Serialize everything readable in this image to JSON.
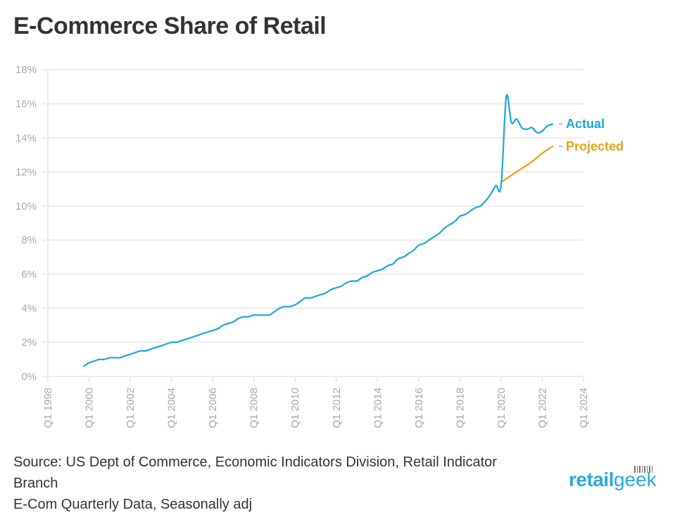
{
  "chart_data": {
    "type": "line",
    "title": "E-Commerce Share of Retail",
    "xlabel": "",
    "ylabel": "",
    "ylim": [
      0,
      18
    ],
    "xlim": [
      1998,
      2024
    ],
    "y_ticks": [
      "0%",
      "2%",
      "4%",
      "6%",
      "8%",
      "10%",
      "12%",
      "14%",
      "16%",
      "18%"
    ],
    "y_tick_values": [
      0,
      2,
      4,
      6,
      8,
      10,
      12,
      14,
      16,
      18
    ],
    "x_ticks": [
      "Q1 1998",
      "Q1 2000",
      "Q1 2002",
      "Q1 2004",
      "Q1 2006",
      "Q1 2008",
      "Q1 2010",
      "Q1 2012",
      "Q1 2014",
      "Q1 2016",
      "Q1 2018",
      "Q1 2020",
      "Q1 2022",
      "Q1 2024"
    ],
    "x_tick_values": [
      1998,
      2000,
      2002,
      2004,
      2006,
      2008,
      2010,
      2012,
      2014,
      2016,
      2018,
      2020,
      2022,
      2024
    ],
    "grid": true,
    "legend": "right (inline labels at line ends)",
    "series": [
      {
        "name": "Actual",
        "color": "#1aa7dc",
        "x": [
          1999.75,
          2000.0,
          2000.25,
          2000.5,
          2000.75,
          2001.0,
          2001.25,
          2001.5,
          2001.75,
          2002.0,
          2002.25,
          2002.5,
          2002.75,
          2003.0,
          2003.25,
          2003.5,
          2003.75,
          2004.0,
          2004.25,
          2004.5,
          2004.75,
          2005.0,
          2005.25,
          2005.5,
          2005.75,
          2006.0,
          2006.25,
          2006.5,
          2006.75,
          2007.0,
          2007.25,
          2007.5,
          2007.75,
          2008.0,
          2008.25,
          2008.5,
          2008.75,
          2009.0,
          2009.25,
          2009.5,
          2009.75,
          2010.0,
          2010.25,
          2010.5,
          2010.75,
          2011.0,
          2011.25,
          2011.5,
          2011.75,
          2012.0,
          2012.25,
          2012.5,
          2012.75,
          2013.0,
          2013.25,
          2013.5,
          2013.75,
          2014.0,
          2014.25,
          2014.5,
          2014.75,
          2015.0,
          2015.25,
          2015.5,
          2015.75,
          2016.0,
          2016.25,
          2016.5,
          2016.75,
          2017.0,
          2017.25,
          2017.5,
          2017.75,
          2018.0,
          2018.25,
          2018.5,
          2018.75,
          2019.0,
          2019.25,
          2019.5,
          2019.75,
          2020.0,
          2020.25,
          2020.5,
          2020.75,
          2021.0,
          2021.25,
          2021.5,
          2021.75,
          2022.0,
          2022.25,
          2022.5
        ],
        "values": [
          0.6,
          0.8,
          0.9,
          1.0,
          1.0,
          1.1,
          1.1,
          1.1,
          1.2,
          1.3,
          1.4,
          1.5,
          1.5,
          1.6,
          1.7,
          1.8,
          1.9,
          2.0,
          2.0,
          2.1,
          2.2,
          2.3,
          2.4,
          2.5,
          2.6,
          2.7,
          2.8,
          3.0,
          3.1,
          3.2,
          3.4,
          3.5,
          3.5,
          3.6,
          3.6,
          3.6,
          3.6,
          3.8,
          4.0,
          4.1,
          4.1,
          4.2,
          4.4,
          4.6,
          4.6,
          4.7,
          4.8,
          4.9,
          5.1,
          5.2,
          5.3,
          5.5,
          5.6,
          5.6,
          5.8,
          5.9,
          6.1,
          6.2,
          6.3,
          6.5,
          6.6,
          6.9,
          7.0,
          7.2,
          7.4,
          7.7,
          7.8,
          8.0,
          8.2,
          8.4,
          8.7,
          8.9,
          9.1,
          9.4,
          9.5,
          9.7,
          9.9,
          10.0,
          10.3,
          10.7,
          11.2,
          11.2,
          16.4,
          14.9,
          15.1,
          14.6,
          14.5,
          14.6,
          14.3,
          14.4,
          14.7,
          14.8
        ]
      },
      {
        "name": "Projected",
        "color": "#e8a317",
        "x": [
          2020.0,
          2020.5,
          2021.0,
          2021.5,
          2022.0,
          2022.5
        ],
        "values": [
          11.4,
          11.8,
          12.2,
          12.6,
          13.1,
          13.5
        ]
      }
    ]
  },
  "footer": {
    "source_line1": "Source: US Dept of Commerce, Economic Indicators Division, Retail Indicator",
    "source_line2": "Branch",
    "source_line3": "E-Com Quarterly Data, Seasonally adj"
  },
  "logo": {
    "text_bold": "retail",
    "text_light": "geek"
  },
  "colors": {
    "actual": "#1aa7dc",
    "projected": "#e8a317",
    "grid": "#ebebeb",
    "tick_text": "#a8a8a8",
    "title": "#333333"
  }
}
